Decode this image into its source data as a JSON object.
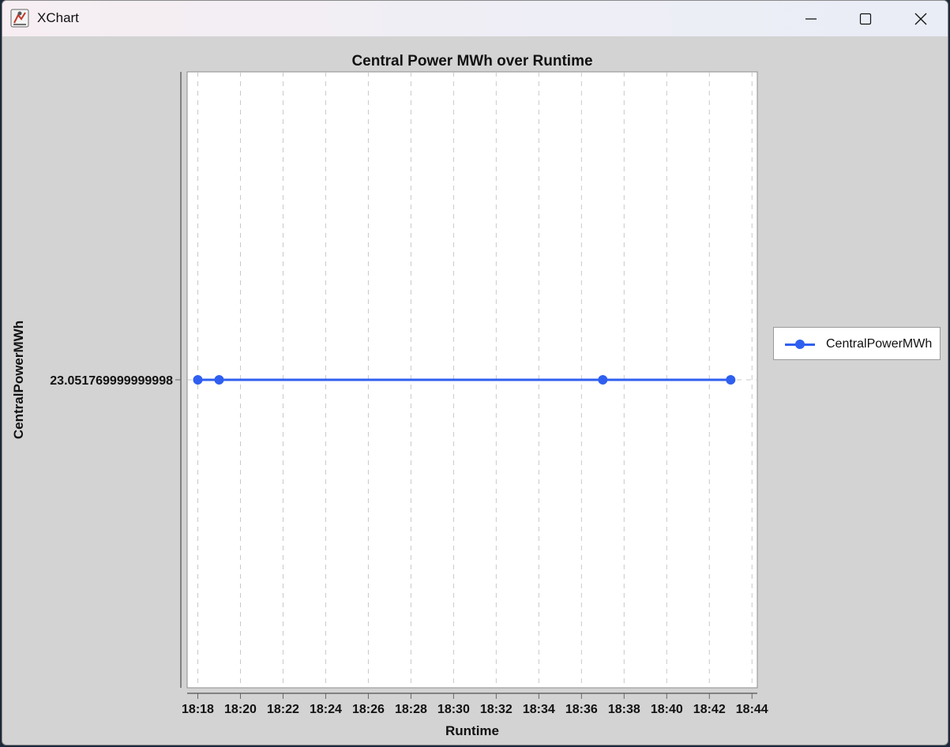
{
  "window": {
    "title": "XChart",
    "controls": {
      "minimize": "minimize-icon",
      "maximize": "maximize-icon",
      "close": "close-icon"
    }
  },
  "chart_data": {
    "type": "line",
    "title": "Central Power MWh over Runtime",
    "xlabel": "Runtime",
    "ylabel": "CentralPowerMWh",
    "x_ticks": [
      "18:18",
      "18:20",
      "18:22",
      "18:24",
      "18:26",
      "18:28",
      "18:30",
      "18:32",
      "18:34",
      "18:36",
      "18:38",
      "18:40",
      "18:42",
      "18:44"
    ],
    "y_ticks": [
      "23.051769999999998"
    ],
    "xlim": [
      "18:17:30",
      "18:44:15"
    ],
    "series": [
      {
        "name": "CentralPowerMWh",
        "color": "#2f5ff0",
        "marker": "circle",
        "x": [
          "18:18",
          "18:19",
          "18:37",
          "18:43"
        ],
        "y": [
          23.051769999999998,
          23.051769999999998,
          23.051769999999998,
          23.051769999999998
        ]
      }
    ],
    "grid": {
      "vertical": true,
      "horizontal": true,
      "style": "dashed"
    },
    "legend_position": "outside-right"
  }
}
